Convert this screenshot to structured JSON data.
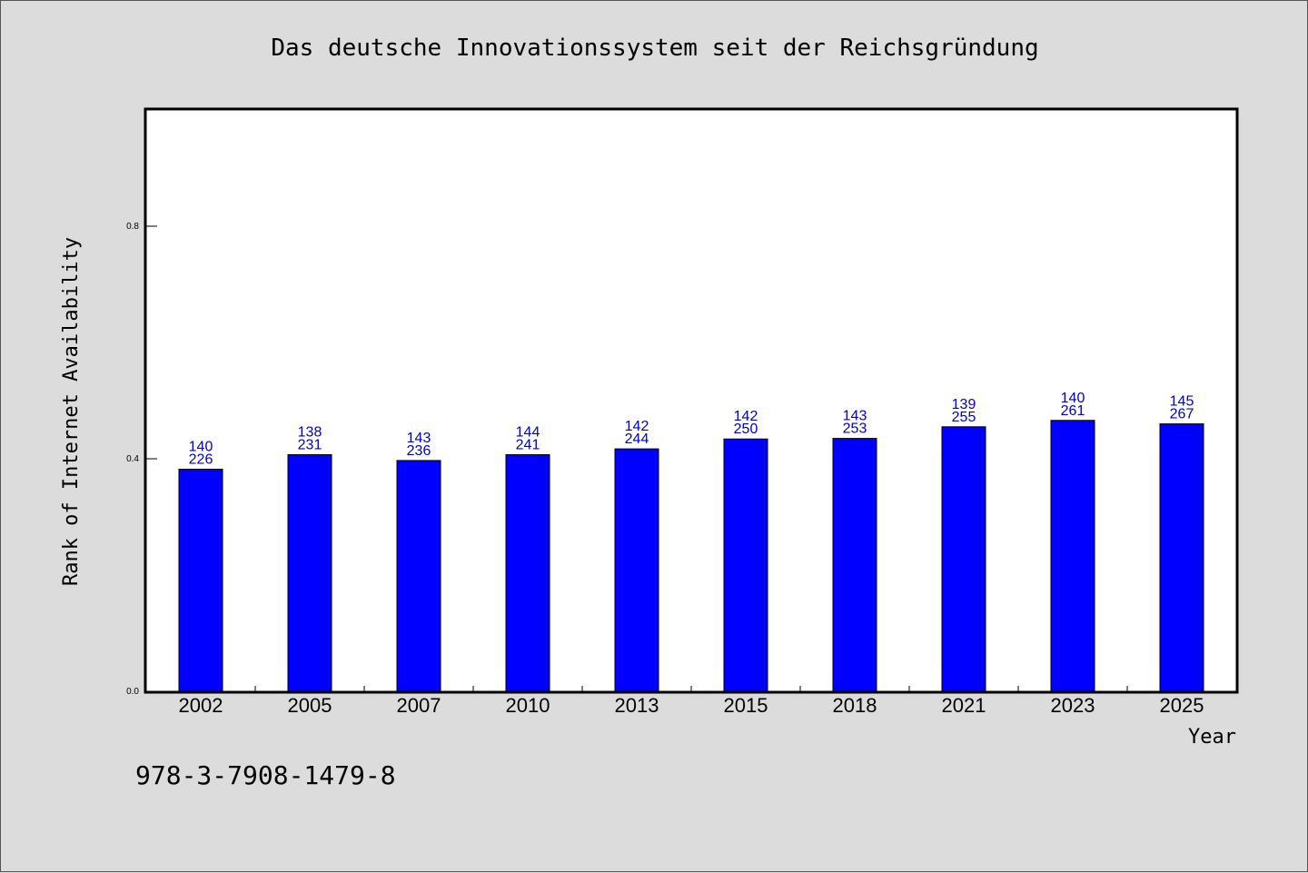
{
  "chart_data": {
    "type": "bar",
    "title": "Das deutsche Innovationssystem seit der Reichsgründung",
    "xlabel": "Year",
    "ylabel": "Rank of Internet Availability",
    "categories": [
      "2002",
      "2005",
      "2007",
      "2010",
      "2013",
      "2015",
      "2018",
      "2021",
      "2023",
      "2025"
    ],
    "values": [
      0.382,
      0.407,
      0.397,
      0.407,
      0.417,
      0.434,
      0.435,
      0.455,
      0.466,
      0.46
    ],
    "data_labels": [
      [
        "140",
        "226"
      ],
      [
        "138",
        "231"
      ],
      [
        "143",
        "236"
      ],
      [
        "144",
        "241"
      ],
      [
        "142",
        "244"
      ],
      [
        "142",
        "250"
      ],
      [
        "143",
        "253"
      ],
      [
        "139",
        "255"
      ],
      [
        "140",
        "261"
      ],
      [
        "145",
        "267"
      ]
    ],
    "ylim": [
      0,
      1.0
    ],
    "yticks": [
      "0.0",
      "0.4",
      "0.8"
    ],
    "bar_color": "#0000ff",
    "label_color": "#0000cc",
    "grid": false,
    "legend": "none"
  },
  "footer": {
    "isbn": "978-3-7908-1479-8"
  }
}
